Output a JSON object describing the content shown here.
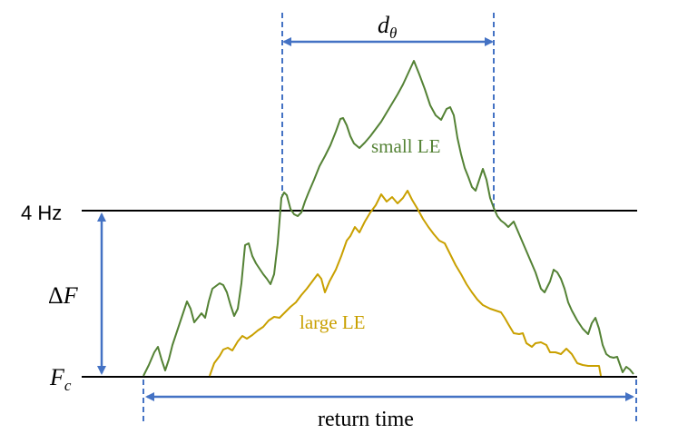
{
  "labels": {
    "four_hz": "4 Hz",
    "delta_f_symbol": "Δ",
    "delta_f_var": "F",
    "fc_var": "F",
    "fc_sub": "c",
    "d_var": "d",
    "d_sub": "θ",
    "small_le": "small LE",
    "large_le": "large LE",
    "return_time": "return time"
  },
  "colors": {
    "small_le": "#548235",
    "large_le": "#C9A000",
    "arrow": "#4472C4",
    "reference_line": "#000000"
  }
}
